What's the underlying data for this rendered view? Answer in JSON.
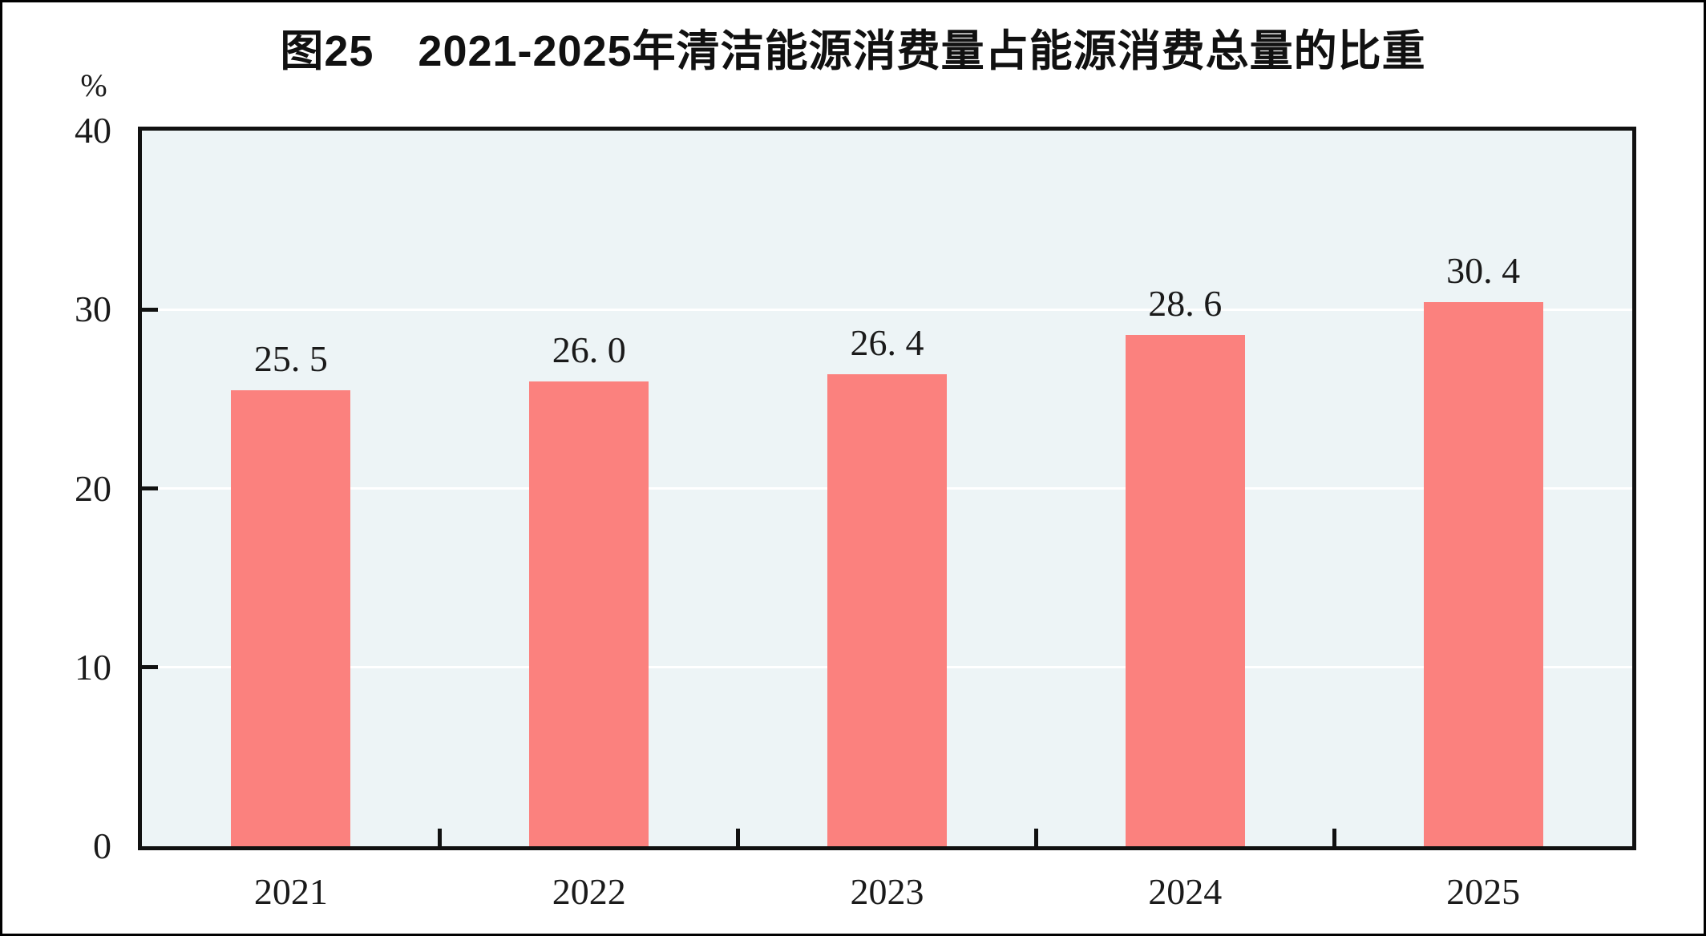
{
  "title": "图25　2021-2025年清洁能源消费量占能源消费总量的比重",
  "unit_label": "%",
  "chart_data": {
    "type": "bar",
    "title": "图25　2021-2025年清洁能源消费量占能源消费总量的比重",
    "categories": [
      "2021",
      "2022",
      "2023",
      "2024",
      "2025"
    ],
    "values": [
      25.5,
      26.0,
      26.4,
      28.6,
      30.4
    ],
    "value_labels": [
      "25. 5",
      "26. 0",
      "26. 4",
      "28. 6",
      "30. 4"
    ],
    "xlabel": "",
    "ylabel": "%",
    "ylim": [
      0,
      40
    ],
    "yticks": [
      0,
      10,
      20,
      30,
      40
    ],
    "grid_values": [
      10,
      20,
      30
    ],
    "legend": "none",
    "colors": {
      "bar": "#FB817E",
      "plot_background": "#EDF4F6",
      "gridline": "#FFFFFF",
      "axis": "#111111",
      "text": "#1A1A1A",
      "page_background": "#FFFFFF",
      "frame_border": "#000000"
    }
  }
}
